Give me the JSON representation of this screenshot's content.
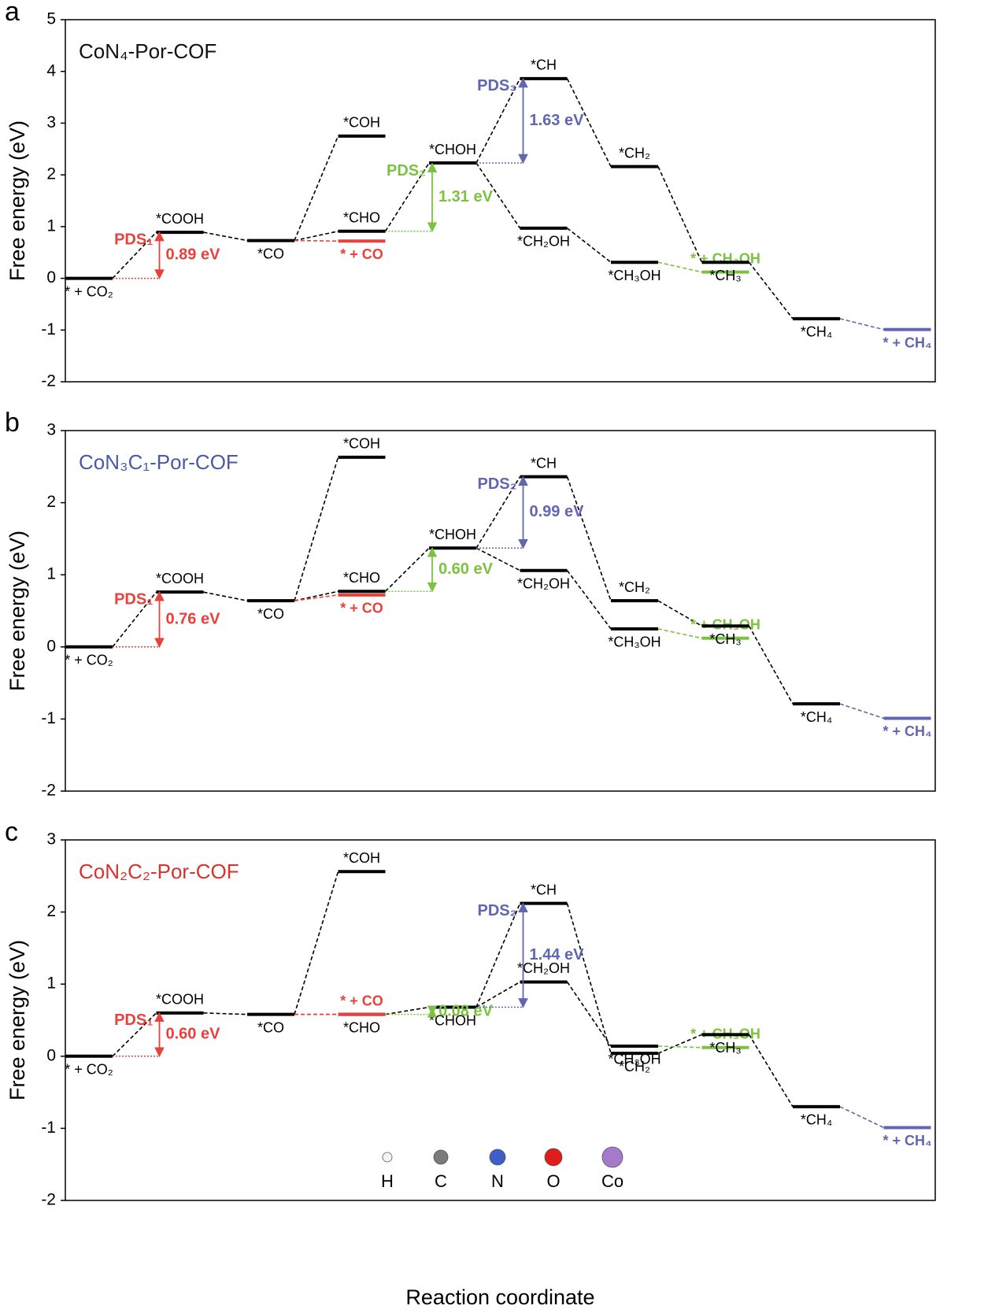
{
  "chart_data": [
    {
      "type": "energy",
      "panel": "a",
      "title": "CoN₄-Por-COF",
      "title_color": "#111111",
      "ylabel": "Free energy (eV)",
      "ylim": [
        -2,
        5
      ],
      "yticks": [
        -2,
        -1,
        0,
        1,
        2,
        3,
        4,
        5
      ],
      "levels": [
        {
          "label": "* + CO₂",
          "value": 0,
          "color": "#000000"
        },
        {
          "label": "*COOH",
          "value": 0.89,
          "color": "#000000"
        },
        {
          "label": "*CO",
          "value": 0.73,
          "color": "#000000"
        },
        {
          "label": "*COH",
          "value": 2.75,
          "color": "#000000"
        },
        {
          "label": "*CHO",
          "value": 0.91,
          "color": "#000000"
        },
        {
          "label": "* + CO",
          "value": 0.72,
          "color": "#e8413c"
        },
        {
          "label": "*CHOH",
          "value": 2.23,
          "color": "#000000"
        },
        {
          "label": "*CH",
          "value": 3.86,
          "color": "#000000"
        },
        {
          "label": "*CH₂OH",
          "value": 0.97,
          "color": "#000000"
        },
        {
          "label": "*CH₂",
          "value": 2.16,
          "color": "#000000"
        },
        {
          "label": "*CH₃OH",
          "value": 0.31,
          "color": "#000000"
        },
        {
          "label": "* + CH₃OH",
          "value": 0.12,
          "color": "#7cc242"
        },
        {
          "label": "*CH₃",
          "value": 0.31,
          "color": "#000000"
        },
        {
          "label": "*CH₄",
          "value": -0.78,
          "color": "#000000"
        },
        {
          "label": "* + CH₄",
          "value": -0.99,
          "color": "#6067b0"
        }
      ],
      "annotations": [
        {
          "label": "PDS₁",
          "value": 0.89,
          "value_label": "0.89 eV",
          "color": "#e8413c"
        },
        {
          "label": "PDS₂",
          "value": 1.31,
          "value_label": "1.31 eV",
          "color": "#7cc242"
        },
        {
          "label": "PDS₃",
          "value": 1.63,
          "value_label": "1.63 eV",
          "color": "#6067b0"
        }
      ]
    },
    {
      "type": "energy",
      "panel": "b",
      "title": "CoN₃C₁-Por-COF",
      "title_color": "#4a5aa8",
      "ylabel": "Free energy (eV)",
      "ylim": [
        -2,
        3
      ],
      "yticks": [
        -2,
        -1,
        0,
        1,
        2,
        3
      ],
      "levels": [
        {
          "label": "* + CO₂",
          "value": 0,
          "color": "#000000"
        },
        {
          "label": "*COOH",
          "value": 0.76,
          "color": "#000000"
        },
        {
          "label": "*CO",
          "value": 0.64,
          "color": "#000000"
        },
        {
          "label": "*COH",
          "value": 2.63,
          "color": "#000000"
        },
        {
          "label": "*CHO",
          "value": 0.77,
          "color": "#000000"
        },
        {
          "label": "* + CO",
          "value": 0.72,
          "color": "#e8413c"
        },
        {
          "label": "*CHOH",
          "value": 1.37,
          "color": "#000000"
        },
        {
          "label": "*CH",
          "value": 2.36,
          "color": "#000000"
        },
        {
          "label": "*CH₂OH",
          "value": 1.06,
          "color": "#000000"
        },
        {
          "label": "*CH₂",
          "value": 0.64,
          "color": "#000000"
        },
        {
          "label": "*CH₃OH",
          "value": 0.25,
          "color": "#000000"
        },
        {
          "label": "* + CH₃OH",
          "value": 0.12,
          "color": "#7cc242"
        },
        {
          "label": "*CH₃",
          "value": 0.29,
          "color": "#000000"
        },
        {
          "label": "*CH₄",
          "value": -0.79,
          "color": "#000000"
        },
        {
          "label": "* + CH₄",
          "value": -0.99,
          "color": "#6067b0"
        }
      ],
      "annotations": [
        {
          "label": "PDS₁",
          "value": 0.76,
          "value_label": "0.76 eV",
          "color": "#e8413c"
        },
        {
          "value": 0.6,
          "value_label": "0.60 eV",
          "color": "#7cc242"
        },
        {
          "label": "PDS₂",
          "value": 0.99,
          "value_label": "0.99 eV",
          "color": "#6067b0"
        }
      ]
    },
    {
      "type": "energy",
      "panel": "c",
      "title": "CoN₂C₂-Por-COF",
      "title_color": "#d9312b",
      "ylabel": "Free energy (eV)",
      "xlabel": "Reaction coordinate",
      "ylim": [
        -2,
        3
      ],
      "yticks": [
        -2,
        -1,
        0,
        1,
        2,
        3
      ],
      "levels": [
        {
          "label": "* + CO₂",
          "value": 0,
          "color": "#000000"
        },
        {
          "label": "*COOH",
          "value": 0.6,
          "color": "#000000"
        },
        {
          "label": "*CO",
          "value": 0.58,
          "color": "#000000"
        },
        {
          "label": "*COH",
          "value": 2.56,
          "color": "#000000"
        },
        {
          "label": "*CHO",
          "value": 0.58,
          "color": "#000000"
        },
        {
          "label": "* + CO",
          "value": 0.58,
          "color": "#e8413c"
        },
        {
          "label": "*CHOH",
          "value": 0.68,
          "color": "#000000"
        },
        {
          "label": "*CH",
          "value": 2.12,
          "color": "#000000"
        },
        {
          "label": "*CH₂OH",
          "value": 1.03,
          "color": "#000000"
        },
        {
          "label": "*CH₂",
          "value": 0.04,
          "color": "#000000"
        },
        {
          "label": "*CH₃OH",
          "value": 0.14,
          "color": "#000000"
        },
        {
          "label": "* + CH₃OH",
          "value": 0.12,
          "color": "#7cc242"
        },
        {
          "label": "*CH₃",
          "value": 0.3,
          "color": "#000000"
        },
        {
          "label": "*CH₄",
          "value": -0.7,
          "color": "#000000"
        },
        {
          "label": "* + CH₄",
          "value": -0.99,
          "color": "#6067b0"
        }
      ],
      "annotations": [
        {
          "label": "PDS₁",
          "value": 0.6,
          "value_label": "0.60 eV",
          "color": "#e8413c"
        },
        {
          "value": 0.08,
          "value_label": "0.08 eV",
          "color": "#7cc242"
        },
        {
          "label": "PDS₂",
          "value": 1.44,
          "value_label": "1.44 eV",
          "color": "#6067b0"
        }
      ],
      "legend": [
        {
          "name": "H",
          "color": "#f4f4f4"
        },
        {
          "name": "C",
          "color": "#7a7a7a"
        },
        {
          "name": "N",
          "color": "#3f5fc8"
        },
        {
          "name": "O",
          "color": "#e01d1d"
        },
        {
          "name": "Co",
          "color": "#a67acb"
        }
      ]
    }
  ]
}
